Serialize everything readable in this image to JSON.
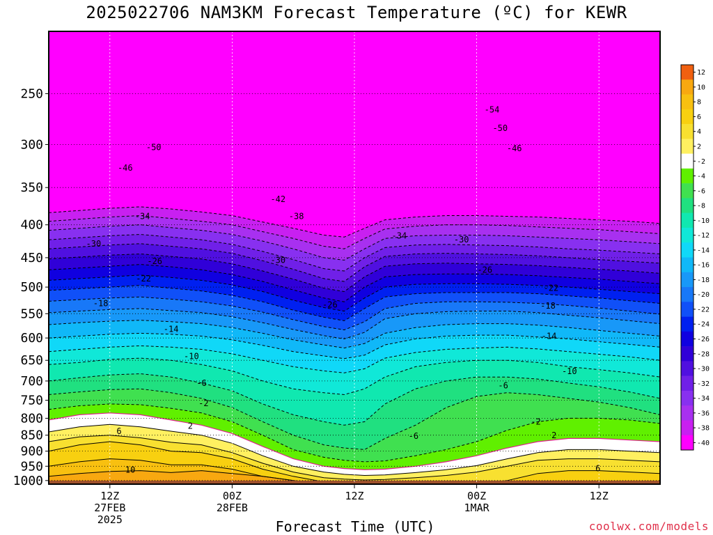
{
  "title": "2025022706 NAM3KM Forecast Temperature (ºC) for KEWR",
  "credit": "coolwx.com/models",
  "chart_data": {
    "type": "heatmap",
    "title": "2025022706 NAM3KM Forecast Temperature (ºC) for KEWR",
    "xlabel": "Forecast Time (UTC)",
    "ylabel": "",
    "x_unit": "hours since 2025022706",
    "xlim": [
      0,
      60
    ],
    "y_scale": "log pressure (hPa)",
    "ylim": [
      1013,
      200
    ],
    "grid": "dotted",
    "legend": "right",
    "y_ticks": [
      250,
      300,
      350,
      400,
      450,
      500,
      550,
      600,
      650,
      700,
      750,
      800,
      850,
      900,
      950,
      1000
    ],
    "x_ticks": [
      {
        "x": 6,
        "lines": [
          "12Z",
          "27FEB",
          "2025"
        ]
      },
      {
        "x": 18,
        "lines": [
          "00Z",
          "28FEB"
        ]
      },
      {
        "x": 30,
        "lines": [
          "12Z"
        ]
      },
      {
        "x": 42,
        "lines": [
          "00Z",
          "1MAR"
        ]
      },
      {
        "x": 54,
        "lines": [
          "12Z"
        ]
      }
    ],
    "colorbar": {
      "levels": [
        12,
        10,
        8,
        6,
        4,
        2,
        -2,
        -4,
        -6,
        -8,
        -10,
        -12,
        -14,
        -16,
        -18,
        -20,
        -22,
        -24,
        -26,
        -28,
        -30,
        -32,
        -34,
        -36,
        -38,
        -40
      ],
      "colors": [
        "#f06010",
        "#f8a810",
        "#f8c010",
        "#f8d010",
        "#f8e030",
        "#fff060",
        "#ffffff",
        "#60f000",
        "#40e050",
        "#20e080",
        "#10e8b0",
        "#10e8d8",
        "#10d8f8",
        "#10b8f8",
        "#1898f8",
        "#1878f8",
        "#1050f8",
        "#0020f0",
        "#1000e0",
        "#3000d8",
        "#5010e0",
        "#7020e8",
        "#8830f0",
        "#a830f0",
        "#c820f0",
        "#ff00ff"
      ]
    },
    "temperature_bands": {
      "x": [
        0,
        3,
        6,
        9,
        12,
        15,
        18,
        21,
        24,
        27,
        29,
        31,
        33,
        36,
        39,
        42,
        45,
        48,
        51,
        54,
        57,
        60
      ],
      "bands": [
        {
          "t": 10,
          "color": "#f8a810",
          "p": [
            985,
            975,
            968,
            965,
            972,
            965,
            975,
            985,
            1000,
            1013,
            1013,
            1013,
            1013,
            1013,
            1013,
            1013,
            1013,
            1013,
            1013,
            1013,
            1013,
            1013
          ]
        },
        {
          "t": 8,
          "color": "#f8c010",
          "p": [
            950,
            935,
            925,
            930,
            945,
            945,
            960,
            985,
            1000,
            1013,
            1013,
            1013,
            1013,
            1013,
            1013,
            1013,
            1013,
            1013,
            1013,
            1013,
            1013,
            1013
          ]
        },
        {
          "t": 6,
          "color": "#f8d010",
          "p": [
            900,
            880,
            870,
            880,
            900,
            905,
            925,
            960,
            985,
            1005,
            1010,
            1013,
            1013,
            1013,
            1013,
            1013,
            1000,
            975,
            965,
            965,
            970,
            975
          ]
        },
        {
          "t": 4,
          "color": "#f8e030",
          "p": [
            870,
            855,
            850,
            858,
            872,
            880,
            905,
            940,
            970,
            990,
            995,
            998,
            996,
            990,
            982,
            970,
            950,
            930,
            925,
            925,
            930,
            935
          ]
        },
        {
          "t": 2,
          "color": "#fff060",
          "p": [
            840,
            825,
            818,
            825,
            838,
            850,
            875,
            915,
            950,
            970,
            978,
            982,
            980,
            972,
            962,
            948,
            925,
            905,
            895,
            895,
            900,
            905
          ]
        },
        {
          "t": 0,
          "color": "#ffffff",
          "p": [
            805,
            790,
            785,
            790,
            805,
            820,
            845,
            885,
            925,
            950,
            958,
            962,
            960,
            950,
            935,
            915,
            890,
            870,
            860,
            860,
            865,
            870
          ]
        },
        {
          "t": -4,
          "color": "#60f000",
          "p": [
            775,
            765,
            760,
            762,
            772,
            785,
            810,
            850,
            895,
            920,
            930,
            935,
            932,
            915,
            895,
            870,
            835,
            810,
            800,
            800,
            805,
            815
          ]
        },
        {
          "t": -6,
          "color": "#40e050",
          "p": [
            735,
            728,
            722,
            720,
            730,
            745,
            770,
            810,
            850,
            880,
            890,
            895,
            860,
            820,
            770,
            740,
            730,
            735,
            745,
            755,
            770,
            790
          ]
        },
        {
          "t": -8,
          "color": "#20e080",
          "p": [
            700,
            692,
            685,
            682,
            690,
            705,
            725,
            760,
            790,
            810,
            820,
            810,
            760,
            720,
            700,
            690,
            690,
            695,
            705,
            715,
            728,
            745
          ]
        },
        {
          "t": -10,
          "color": "#10e8b0",
          "p": [
            660,
            655,
            648,
            645,
            650,
            660,
            675,
            700,
            720,
            730,
            735,
            720,
            690,
            665,
            655,
            650,
            650,
            655,
            665,
            672,
            680,
            690
          ]
        },
        {
          "t": -12,
          "color": "#10e8d8",
          "p": [
            630,
            625,
            620,
            617,
            620,
            625,
            635,
            650,
            665,
            675,
            680,
            670,
            645,
            632,
            625,
            622,
            620,
            624,
            630,
            636,
            642,
            650
          ]
        },
        {
          "t": -14,
          "color": "#10d8f8",
          "p": [
            600,
            596,
            592,
            590,
            592,
            596,
            604,
            616,
            630,
            640,
            646,
            638,
            615,
            602,
            596,
            594,
            594,
            598,
            602,
            608,
            614,
            620
          ]
        },
        {
          "t": -16,
          "color": "#10b8f8",
          "p": [
            572,
            568,
            565,
            563,
            566,
            570,
            578,
            590,
            604,
            615,
            622,
            612,
            590,
            578,
            572,
            570,
            570,
            573,
            578,
            584,
            590,
            596
          ]
        },
        {
          "t": -18,
          "color": "#1898f8",
          "p": [
            548,
            545,
            542,
            540,
            544,
            548,
            556,
            568,
            582,
            595,
            602,
            588,
            560,
            550,
            546,
            545,
            545,
            548,
            553,
            558,
            564,
            570
          ]
        },
        {
          "t": -20,
          "color": "#1878f8",
          "p": [
            526,
            523,
            520,
            518,
            522,
            527,
            535,
            547,
            562,
            576,
            583,
            566,
            540,
            530,
            527,
            527,
            528,
            530,
            534,
            539,
            545,
            551
          ]
        },
        {
          "t": -22,
          "color": "#1050f8",
          "p": [
            506,
            503,
            500,
            497,
            502,
            507,
            515,
            527,
            543,
            557,
            564,
            540,
            518,
            512,
            510,
            510,
            510,
            512,
            516,
            520,
            525,
            530
          ]
        },
        {
          "t": -24,
          "color": "#0020f0",
          "p": [
            488,
            485,
            482,
            479,
            483,
            488,
            496,
            508,
            524,
            538,
            545,
            520,
            500,
            495,
            494,
            494,
            495,
            497,
            500,
            504,
            508,
            512
          ]
        },
        {
          "t": -26,
          "color": "#1000e0",
          "p": [
            470,
            467,
            464,
            461,
            465,
            470,
            478,
            490,
            505,
            520,
            527,
            500,
            482,
            478,
            477,
            477,
            478,
            480,
            483,
            486,
            490,
            494
          ]
        },
        {
          "t": -28,
          "color": "#3000d8",
          "p": [
            452,
            449,
            446,
            444,
            448,
            452,
            460,
            472,
            486,
            502,
            508,
            482,
            464,
            460,
            459,
            460,
            461,
            463,
            466,
            469,
            472,
            476
          ]
        },
        {
          "t": -30,
          "color": "#5010e0",
          "p": [
            436,
            433,
            430,
            428,
            432,
            436,
            443,
            455,
            469,
            485,
            490,
            465,
            448,
            444,
            443,
            444,
            445,
            447,
            450,
            453,
            456,
            459
          ]
        },
        {
          "t": -32,
          "color": "#7020e8",
          "p": [
            422,
            419,
            416,
            414,
            418,
            422,
            429,
            440,
            453,
            468,
            472,
            450,
            434,
            430,
            429,
            430,
            431,
            433,
            436,
            438,
            441,
            444
          ]
        },
        {
          "t": -34,
          "color": "#8830f0",
          "p": [
            408,
            405,
            402,
            400,
            404,
            408,
            414,
            424,
            436,
            450,
            454,
            436,
            420,
            416,
            415,
            415,
            416,
            418,
            420,
            422,
            425,
            428
          ]
        },
        {
          "t": -36,
          "color": "#a830f0",
          "p": [
            395,
            392,
            389,
            387,
            391,
            395,
            400,
            410,
            420,
            432,
            436,
            420,
            406,
            402,
            400,
            400,
            401,
            403,
            405,
            407,
            410,
            413
          ]
        },
        {
          "t": -38,
          "color": "#c820f0",
          "p": [
            383,
            380,
            377,
            375,
            378,
            382,
            387,
            396,
            405,
            415,
            418,
            405,
            393,
            389,
            387,
            387,
            388,
            389,
            391,
            393,
            395,
            398
          ]
        }
      ]
    },
    "contour_labels": [
      {
        "text": "-54",
        "x": 43.5,
        "p": 265
      },
      {
        "text": "-50",
        "x": 44.3,
        "p": 283
      },
      {
        "text": "-50",
        "x": 10.3,
        "p": 303
      },
      {
        "text": "-46",
        "x": 45.7,
        "p": 304
      },
      {
        "text": "-46",
        "x": 7.5,
        "p": 326
      },
      {
        "text": "-42",
        "x": 22.5,
        "p": 365
      },
      {
        "text": "-38",
        "x": 24.3,
        "p": 388
      },
      {
        "text": "-34",
        "x": 9.2,
        "p": 388
      },
      {
        "text": "-34",
        "x": 34.4,
        "p": 416
      },
      {
        "text": "-30",
        "x": 4.4,
        "p": 428
      },
      {
        "text": "-30",
        "x": 40.5,
        "p": 422
      },
      {
        "text": "-30",
        "x": 22.5,
        "p": 454
      },
      {
        "text": "-26",
        "x": 10.4,
        "p": 456
      },
      {
        "text": "-26",
        "x": 42.8,
        "p": 470
      },
      {
        "text": "-26",
        "x": 27.6,
        "p": 533
      },
      {
        "text": "-22",
        "x": 9.3,
        "p": 485
      },
      {
        "text": "-22",
        "x": 49.3,
        "p": 502
      },
      {
        "text": "-18",
        "x": 5.1,
        "p": 530
      },
      {
        "text": "-18",
        "x": 49.0,
        "p": 535
      },
      {
        "text": "-14",
        "x": 12.0,
        "p": 581
      },
      {
        "text": "-14",
        "x": 49.1,
        "p": 596
      },
      {
        "text": "-10",
        "x": 14.0,
        "p": 641
      },
      {
        "text": "-10",
        "x": 51.1,
        "p": 676
      },
      {
        "text": "-6",
        "x": 15.0,
        "p": 705
      },
      {
        "text": "-6",
        "x": 44.6,
        "p": 712
      },
      {
        "text": "-6",
        "x": 35.8,
        "p": 853
      },
      {
        "text": "-2",
        "x": 15.2,
        "p": 758
      },
      {
        "text": "-2",
        "x": 47.8,
        "p": 810
      },
      {
        "text": "2",
        "x": 13.9,
        "p": 822
      },
      {
        "text": "2",
        "x": 49.6,
        "p": 851
      },
      {
        "text": "6",
        "x": 6.9,
        "p": 838
      },
      {
        "text": "6",
        "x": 53.9,
        "p": 958
      },
      {
        "text": "10",
        "x": 8.0,
        "p": 962
      }
    ]
  }
}
